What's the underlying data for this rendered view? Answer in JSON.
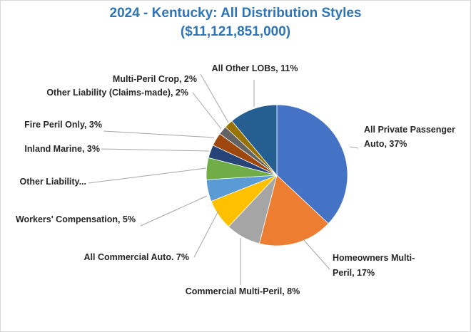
{
  "chart_data": {
    "type": "pie",
    "title": "2024 - Kentucky: All Distribution Styles",
    "subtitle": "($11,121,851,000)",
    "slices": [
      {
        "label": "All Private Passenger Auto, 37%",
        "value": 37,
        "color": "#4472c4"
      },
      {
        "label": "Homeowners Multi-Peril, 17%",
        "value": 17,
        "color": "#ed7d31"
      },
      {
        "label": "Commercial Multi-Peril, 8%",
        "value": 8,
        "color": "#a5a5a5"
      },
      {
        "label": "All Commercial Auto. 7%",
        "value": 7,
        "color": "#ffc000"
      },
      {
        "label": "Workers' Compensation, 5%",
        "value": 5,
        "color": "#5b9bd5"
      },
      {
        "label": "Other Liability...",
        "value": 5,
        "color": "#70ad47"
      },
      {
        "label": "Inland Marine, 3%",
        "value": 3,
        "color": "#264478"
      },
      {
        "label": "Fire Peril Only, 3%",
        "value": 3,
        "color": "#9e480e"
      },
      {
        "label": "Other Liability (Claims-made), 2%",
        "value": 2,
        "color": "#636363"
      },
      {
        "label": "Multi-Peril Crop, 2%",
        "value": 2,
        "color": "#997300"
      },
      {
        "label": "All Other LOBs, 11%",
        "value": 11,
        "color": "#255e91"
      }
    ],
    "legend": "none"
  }
}
